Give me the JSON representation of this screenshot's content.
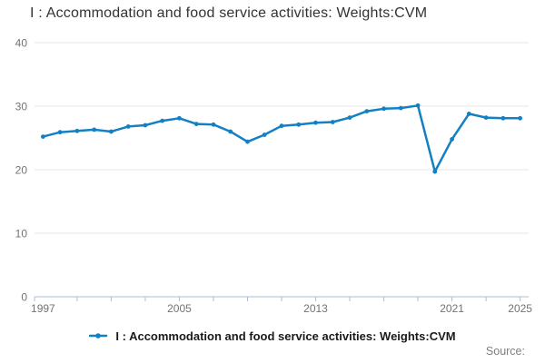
{
  "title": "I : Accommodation and food service activities: Weights:CVM",
  "legend": {
    "label": "I : Accommodation and food service activities: Weights:CVM"
  },
  "source_label": "Source:",
  "colors": {
    "line": "#1380c4",
    "grid": "#e6e6e6",
    "axis_line": "#aebdd2",
    "axis_text": "#737373",
    "title_text": "#333333",
    "legend_text": "#1a1a1a",
    "source_text": "#808080"
  },
  "chart_data": {
    "type": "line",
    "title": "I : Accommodation and food service activities: Weights:CVM",
    "x": [
      1997,
      1998,
      1999,
      2000,
      2001,
      2002,
      2003,
      2004,
      2005,
      2006,
      2007,
      2008,
      2009,
      2010,
      2011,
      2012,
      2013,
      2014,
      2015,
      2016,
      2017,
      2018,
      2019,
      2020,
      2021,
      2022,
      2023,
      2024,
      2025
    ],
    "series": [
      {
        "name": "I : Accommodation and food service activities: Weights:CVM",
        "values": [
          25.2,
          25.9,
          26.1,
          26.3,
          26.0,
          26.8,
          27.0,
          27.7,
          28.1,
          27.2,
          27.1,
          26.0,
          24.4,
          25.5,
          26.9,
          27.1,
          27.4,
          27.5,
          28.2,
          29.2,
          29.6,
          29.7,
          30.1,
          19.7,
          24.8,
          28.8,
          28.2,
          28.1,
          28.1
        ]
      }
    ],
    "xlim": [
      1996.5,
      2025.5
    ],
    "ylim": [
      0,
      40
    ],
    "y_ticks": [
      0,
      10,
      20,
      30,
      40
    ],
    "x_tick_labels": [
      1997,
      2005,
      2013,
      2021,
      2025
    ],
    "x_minor_tick_interval": 2,
    "grid": "horizontal",
    "legend_position": "bottom",
    "marker": "point"
  }
}
